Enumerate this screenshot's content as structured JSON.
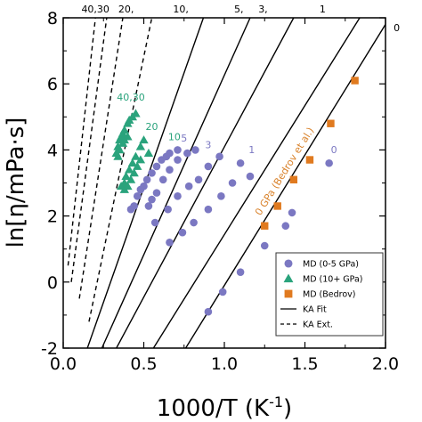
{
  "chart_data": {
    "type": "scatter",
    "title": "",
    "xlabel": "1000/T (K",
    "xlabel_sup": "-1",
    "xlabel_close": ")",
    "ylabel": "ln[η/mPa·s]",
    "xlim": [
      0,
      2.0
    ],
    "ylim": [
      -2,
      8
    ],
    "x_ticks": [
      0.0,
      0.5,
      1.0,
      1.5,
      2.0
    ],
    "x_tick_labels": [
      "0.0",
      "0.5",
      "1.0",
      "1.5",
      "2.0"
    ],
    "y_ticks": [
      -2,
      0,
      2,
      4,
      6,
      8
    ],
    "y_tick_labels": [
      "-2",
      "0",
      "2",
      "4",
      "6",
      "8"
    ],
    "grid": false,
    "legend_position": "bottom-right",
    "colors": {
      "md_low": "#7b78c2",
      "md_high": "#2aa37c",
      "bedrov": "#e07a1f",
      "line": "#000000",
      "label_pressure": "#7b78c2",
      "label_bedrov": "#d9822b"
    },
    "legend": [
      {
        "label": "MD (0-5 GPa)",
        "marker": "circle"
      },
      {
        "label": "MD (10+ GPa)",
        "marker": "triangle"
      },
      {
        "label": "MD (Bedrov)",
        "marker": "square"
      },
      {
        "label": "KA Fit",
        "marker": "solid-line"
      },
      {
        "label": "KA Ext.",
        "marker": "dashed-line"
      }
    ],
    "fit_lines": [
      {
        "label": "0",
        "style": "solid",
        "x": [
          0.76,
          2.0
        ],
        "y": [
          -2.0,
          7.8
        ]
      },
      {
        "label": "1",
        "style": "solid",
        "x": [
          0.56,
          1.84
        ],
        "y": [
          -2.0,
          8.0
        ]
      },
      {
        "label": "3",
        "style": "solid",
        "x": [
          0.33,
          1.43
        ],
        "y": [
          -2.0,
          8.0
        ]
      },
      {
        "label": "5",
        "style": "solid",
        "x": [
          0.24,
          1.16
        ],
        "y": [
          -2.0,
          8.0
        ]
      },
      {
        "label": "10,",
        "style": "solid",
        "x": [
          0.15,
          0.87
        ],
        "y": [
          -2.0,
          8.0
        ]
      },
      {
        "label": "20,",
        "style": "dashed",
        "x": [
          0.16,
          0.55
        ],
        "y": [
          -1.2,
          8.0
        ]
      },
      {
        "label": "30,",
        "style": "dashed",
        "x": [
          0.1,
          0.37
        ],
        "y": [
          -0.5,
          8.0
        ]
      },
      {
        "label": "40,",
        "style": "dashed",
        "x": [
          0.05,
          0.27
        ],
        "y": [
          0.0,
          8.0
        ]
      },
      {
        "label": "",
        "style": "dashed",
        "x": [
          0.03,
          0.2
        ],
        "y": [
          0.5,
          8.0
        ]
      }
    ],
    "top_labels": [
      {
        "text": "40,30",
        "x": 0.2
      },
      {
        "text": "20,",
        "x": 0.39
      },
      {
        "text": "10,",
        "x": 0.73
      },
      {
        "text": "5,",
        "x": 1.09
      },
      {
        "text": "3,",
        "x": 1.24
      },
      {
        "text": "1",
        "x": 1.61
      }
    ],
    "right_label": {
      "text": "0",
      "x": 2.07,
      "y": 7.6
    },
    "series": [
      {
        "name": "MD (0-5 GPa)",
        "marker": "circle",
        "points": [
          [
            0.42,
            2.2
          ],
          [
            0.44,
            2.3
          ],
          [
            0.46,
            2.6
          ],
          [
            0.48,
            2.8
          ],
          [
            0.5,
            2.9
          ],
          [
            0.52,
            3.1
          ],
          [
            0.55,
            3.3
          ],
          [
            0.58,
            3.5
          ],
          [
            0.61,
            3.7
          ],
          [
            0.64,
            3.8
          ],
          [
            0.66,
            3.9
          ],
          [
            0.71,
            4.0
          ],
          [
            0.53,
            2.3
          ],
          [
            0.55,
            2.5
          ],
          [
            0.58,
            2.7
          ],
          [
            0.62,
            3.1
          ],
          [
            0.66,
            3.4
          ],
          [
            0.71,
            3.7
          ],
          [
            0.77,
            3.9
          ],
          [
            0.82,
            4.0
          ],
          [
            0.57,
            1.8
          ],
          [
            0.65,
            2.2
          ],
          [
            0.71,
            2.6
          ],
          [
            0.78,
            2.9
          ],
          [
            0.84,
            3.1
          ],
          [
            0.9,
            3.5
          ],
          [
            0.97,
            3.8
          ],
          [
            1.1,
            3.6
          ],
          [
            0.66,
            1.2
          ],
          [
            0.74,
            1.5
          ],
          [
            0.81,
            1.8
          ],
          [
            0.9,
            2.2
          ],
          [
            0.98,
            2.6
          ],
          [
            1.05,
            3.0
          ],
          [
            1.16,
            3.2
          ],
          [
            0.9,
            -0.9
          ],
          [
            0.99,
            -0.3
          ],
          [
            1.1,
            0.3
          ],
          [
            1.25,
            1.1
          ],
          [
            1.38,
            1.7
          ],
          [
            1.42,
            2.1
          ],
          [
            1.65,
            3.6
          ]
        ]
      },
      {
        "name": "MD (10+ GPa)",
        "marker": "triangle",
        "points": [
          [
            0.33,
            3.9
          ],
          [
            0.34,
            4.1
          ],
          [
            0.35,
            4.3
          ],
          [
            0.36,
            4.4
          ],
          [
            0.37,
            4.5
          ],
          [
            0.38,
            4.6
          ],
          [
            0.4,
            4.8
          ],
          [
            0.41,
            4.9
          ],
          [
            0.43,
            5.0
          ],
          [
            0.45,
            5.1
          ],
          [
            0.34,
            3.8
          ],
          [
            0.35,
            4.0
          ],
          [
            0.37,
            4.2
          ],
          [
            0.38,
            4.3
          ],
          [
            0.4,
            4.4
          ],
          [
            0.36,
            2.9
          ],
          [
            0.38,
            3.0
          ],
          [
            0.39,
            3.2
          ],
          [
            0.41,
            3.4
          ],
          [
            0.43,
            3.6
          ],
          [
            0.45,
            3.8
          ],
          [
            0.48,
            4.1
          ],
          [
            0.5,
            4.3
          ],
          [
            0.38,
            2.8
          ],
          [
            0.4,
            2.9
          ],
          [
            0.42,
            3.1
          ],
          [
            0.44,
            3.3
          ],
          [
            0.46,
            3.5
          ],
          [
            0.48,
            3.7
          ],
          [
            0.53,
            3.9
          ]
        ]
      },
      {
        "name": "MD (Bedrov)",
        "marker": "square",
        "points": [
          [
            1.25,
            1.7
          ],
          [
            1.33,
            2.3
          ],
          [
            1.43,
            3.1
          ],
          [
            1.53,
            3.7
          ],
          [
            1.66,
            4.8
          ],
          [
            1.81,
            6.1
          ]
        ]
      }
    ],
    "annotations": [
      {
        "text": "40,30",
        "x": 0.42,
        "y": 5.5,
        "color": "md_high"
      },
      {
        "text": "20",
        "x": 0.55,
        "y": 4.6,
        "color": "md_high"
      },
      {
        "text": "10",
        "x": 0.69,
        "y": 4.3,
        "color": "md_high"
      },
      {
        "text": "5",
        "x": 0.75,
        "y": 4.25,
        "color": "md_low"
      },
      {
        "text": "3",
        "x": 0.9,
        "y": 4.05,
        "color": "md_low"
      },
      {
        "text": "1",
        "x": 1.17,
        "y": 3.9,
        "color": "md_low"
      },
      {
        "text": "0",
        "x": 1.68,
        "y": 3.9,
        "color": "md_low"
      },
      {
        "text": "0 GPa (Bedrov et al.)",
        "x": 1.39,
        "y": 3.3,
        "color": "label_bedrov",
        "rotate": -58
      }
    ]
  }
}
